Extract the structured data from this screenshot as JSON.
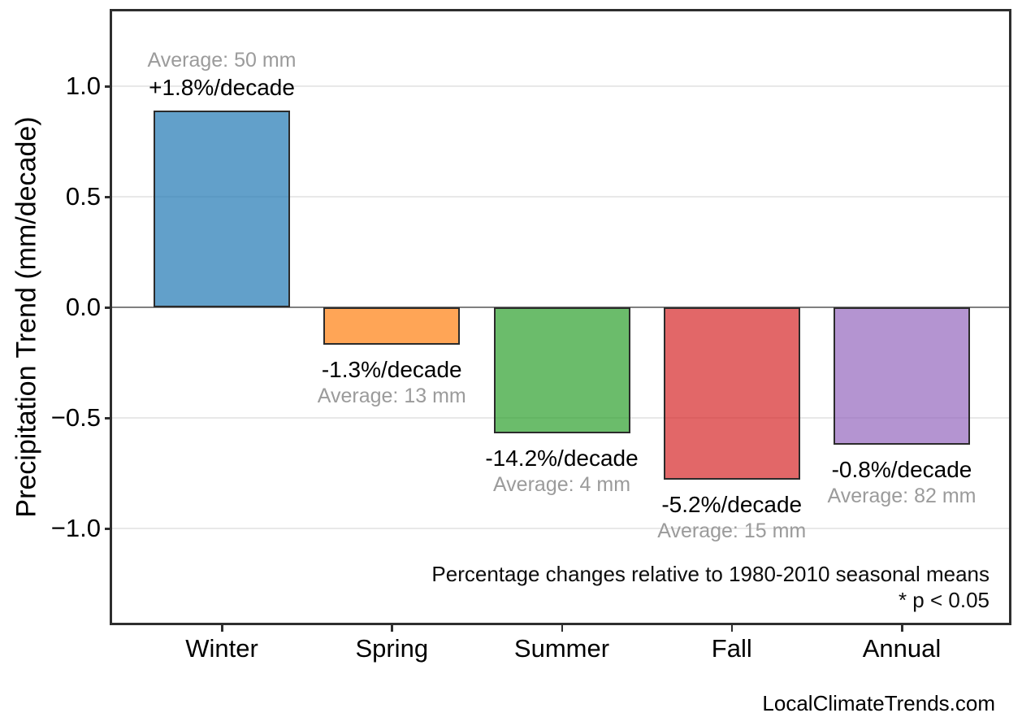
{
  "chart_data": {
    "type": "bar",
    "categories": [
      "Winter",
      "Spring",
      "Summer",
      "Fall",
      "Annual"
    ],
    "values": [
      0.89,
      -0.17,
      -0.57,
      -0.78,
      -0.62
    ],
    "percent_per_decade": [
      1.8,
      -1.3,
      -14.2,
      -5.2,
      -0.8
    ],
    "average_mm": [
      50,
      13,
      4,
      15,
      82
    ],
    "bar_pct_labels": [
      "+1.8%/decade",
      "-1.3%/decade",
      "-14.2%/decade",
      "-5.2%/decade",
      "-0.8%/decade"
    ],
    "bar_avg_labels": [
      "Average: 50 mm",
      "Average: 13 mm",
      "Average: 4 mm",
      "Average: 15 mm",
      "Average: 82 mm"
    ],
    "bar_colors": [
      "#1f77b4",
      "#ff7f0e",
      "#2ca02c",
      "#d62728",
      "#9467bd"
    ],
    "fill_alpha": 0.7,
    "bar_edge_color": "#2b2b2b",
    "ylabel": "Precipitation Trend (mm/decade)",
    "xlabel": "",
    "yticks": [
      1.0,
      0.5,
      0.0,
      -0.5,
      -1.0
    ],
    "ytick_labels": [
      "1.0",
      "0.5",
      "0.0",
      "−0.5",
      "−1.0"
    ],
    "ylim": [
      -1.43,
      1.34
    ],
    "grid": true,
    "gridline_color": "#e8e8e8",
    "zero_line_color": "#808080",
    "annotation_line1": "Percentage changes relative to 1980-2010 seasonal means",
    "annotation_line2": "* p < 0.05",
    "footer": "LocalClimateTrends.com",
    "text_colors": {
      "pct_label": "#000000",
      "avg_label": "#9b9b9b"
    }
  }
}
